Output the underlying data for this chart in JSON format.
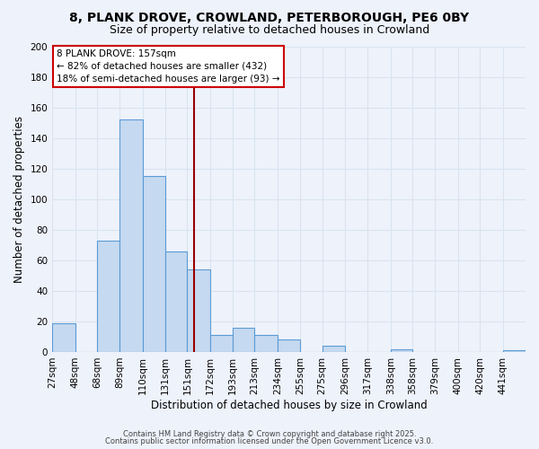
{
  "title": "8, PLANK DROVE, CROWLAND, PETERBOROUGH, PE6 0BY",
  "subtitle": "Size of property relative to detached houses in Crowland",
  "xlabel": "Distribution of detached houses by size in Crowland",
  "ylabel": "Number of detached properties",
  "categories": [
    "27sqm",
    "48sqm",
    "68sqm",
    "89sqm",
    "110sqm",
    "131sqm",
    "151sqm",
    "172sqm",
    "193sqm",
    "213sqm",
    "234sqm",
    "255sqm",
    "275sqm",
    "296sqm",
    "317sqm",
    "338sqm",
    "358sqm",
    "379sqm",
    "400sqm",
    "420sqm",
    "441sqm"
  ],
  "values": [
    19,
    0,
    73,
    152,
    115,
    66,
    54,
    11,
    16,
    11,
    8,
    0,
    4,
    0,
    0,
    2,
    0,
    0,
    0,
    0,
    1
  ],
  "bar_color": "#c5d9f0",
  "bar_edge_color": "#5b9bd5",
  "bin_edges": [
    27,
    48,
    68,
    89,
    110,
    131,
    151,
    172,
    193,
    213,
    234,
    255,
    275,
    296,
    317,
    338,
    358,
    379,
    400,
    420,
    441,
    462
  ],
  "annotation_title": "8 PLANK DROVE: 157sqm",
  "annotation_line1": "← 82% of detached houses are smaller (432)",
  "annotation_line2": "18% of semi-detached houses are larger (93) →",
  "annotation_box_color": "#ffffff",
  "annotation_box_edge_color": "#cc0000",
  "vline_color": "#990000",
  "grid_color": "#d8e4f0",
  "background_color": "#eef2fb",
  "footer1": "Contains HM Land Registry data © Crown copyright and database right 2025.",
  "footer2": "Contains public sector information licensed under the Open Government Licence v3.0.",
  "ylim": [
    0,
    200
  ],
  "yticks": [
    0,
    20,
    40,
    60,
    80,
    100,
    120,
    140,
    160,
    180,
    200
  ],
  "title_fontsize": 10,
  "subtitle_fontsize": 9,
  "axis_label_fontsize": 8.5,
  "tick_fontsize": 7.5,
  "footer_fontsize": 6.0
}
